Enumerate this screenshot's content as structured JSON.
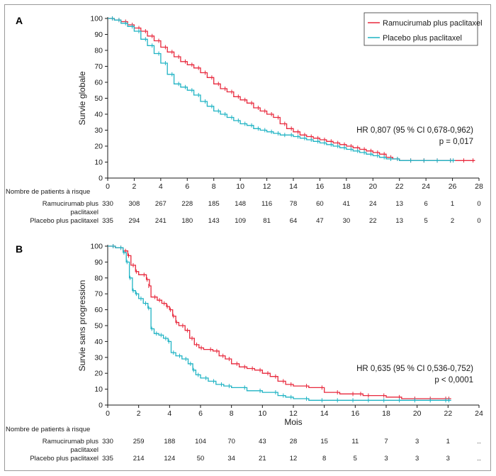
{
  "colors": {
    "ramucirumab": "#e8283c",
    "placebo": "#1fb3c4",
    "axis": "#1a1a1a"
  },
  "chart_data": [
    {
      "type": "line",
      "panel": "A",
      "ylabel": "Survie globale",
      "xlabel": "",
      "xlim": [
        0,
        28
      ],
      "ylim": [
        0,
        100
      ],
      "xticks": [
        0,
        2,
        4,
        6,
        8,
        10,
        12,
        14,
        16,
        18,
        20,
        22,
        24,
        26,
        28
      ],
      "yticks": [
        0,
        10,
        20,
        30,
        40,
        50,
        60,
        70,
        80,
        90,
        100
      ],
      "legend": {
        "placement": "top-right",
        "entries": [
          "Ramucirumab plus paclitaxel",
          "Placebo plus paclitaxel"
        ]
      },
      "annotation": [
        "HR 0,807 (95 % CI 0,678-0,962)",
        "p = 0,017"
      ],
      "series": [
        {
          "name": "Ramucirumab plus paclitaxel",
          "color": "#e8283c",
          "x": [
            0,
            0.5,
            1,
            1.5,
            2,
            2.5,
            3,
            3.5,
            4,
            4.5,
            5,
            5.5,
            6,
            6.5,
            7,
            7.5,
            8,
            8.5,
            9,
            9.5,
            10,
            10.5,
            11,
            11.5,
            12,
            12.5,
            13,
            13.5,
            14,
            14.5,
            15,
            15.5,
            16,
            16.5,
            17,
            17.5,
            18,
            18.5,
            19,
            19.5,
            20,
            20.5,
            21,
            21.5,
            22,
            23,
            24,
            25,
            26,
            27,
            27.7
          ],
          "y": [
            100,
            99,
            98,
            96,
            94,
            92,
            89,
            86,
            82,
            79,
            76,
            73,
            71,
            69,
            66,
            63,
            59,
            56,
            54,
            51,
            49,
            47,
            44,
            42,
            40,
            38,
            34,
            31,
            29,
            27,
            26,
            25,
            24,
            23,
            22,
            21,
            20,
            19,
            18,
            17,
            16,
            15,
            13,
            12,
            11,
            11,
            11,
            11,
            11,
            11,
            11
          ]
        },
        {
          "name": "Placebo plus paclitaxel",
          "color": "#1fb3c4",
          "x": [
            0,
            0.5,
            1,
            1.5,
            2,
            2.5,
            3,
            3.5,
            4,
            4.5,
            5,
            5.5,
            6,
            6.5,
            7,
            7.5,
            8,
            8.5,
            9,
            9.5,
            10,
            10.5,
            11,
            11.5,
            12,
            12.5,
            13,
            13.5,
            14,
            14.5,
            15,
            15.5,
            16,
            16.5,
            17,
            17.5,
            18,
            18.5,
            19,
            19.5,
            20,
            20.5,
            21,
            21.5,
            22,
            23,
            24,
            25,
            26,
            26.2
          ],
          "y": [
            100,
            99,
            97,
            95,
            92,
            87,
            83,
            78,
            72,
            65,
            59,
            57,
            55,
            52,
            48,
            45,
            42,
            40,
            38,
            36,
            34,
            33,
            31,
            30,
            29,
            28,
            27,
            27,
            26,
            25,
            24,
            23,
            22,
            21,
            20,
            19,
            18,
            17,
            16,
            15,
            14,
            13,
            12,
            12,
            11,
            11,
            11,
            11,
            11,
            11
          ]
        }
      ],
      "risk_table": {
        "header": "Nombre de patients à risque",
        "rows": [
          {
            "label_line1": "Ramucirumab plus",
            "label_line2": "paclitaxel",
            "values": [
              "330",
              "308",
              "267",
              "228",
              "185",
              "148",
              "116",
              "78",
              "60",
              "41",
              "24",
              "13",
              "6",
              "1",
              "0"
            ]
          },
          {
            "label_line1": "Placebo plus paclitaxel",
            "label_line2": "",
            "values": [
              "335",
              "294",
              "241",
              "180",
              "143",
              "109",
              "81",
              "64",
              "47",
              "30",
              "22",
              "13",
              "5",
              "2",
              "0"
            ]
          }
        ]
      }
    },
    {
      "type": "line",
      "panel": "B",
      "ylabel": "Survie sans progression",
      "xlabel": "Mois",
      "xlim": [
        0,
        24
      ],
      "ylim": [
        0,
        100
      ],
      "xticks": [
        0,
        2,
        4,
        6,
        8,
        10,
        12,
        14,
        16,
        18,
        20,
        22,
        24
      ],
      "yticks": [
        0,
        10,
        20,
        30,
        40,
        50,
        60,
        70,
        80,
        90,
        100
      ],
      "annotation": [
        "HR 0,635 (95 % CI 0,536-0,752)",
        "p < 0,0001"
      ],
      "series": [
        {
          "name": "Ramucirumab plus paclitaxel",
          "color": "#e8283c",
          "x": [
            0,
            0.5,
            1,
            1.3,
            1.5,
            1.8,
            2,
            2.5,
            2.7,
            2.8,
            3.2,
            3.5,
            3.8,
            4,
            4.2,
            4.4,
            4.6,
            5,
            5.3,
            5.6,
            5.9,
            6.2,
            6.8,
            7.2,
            7.6,
            8,
            8.5,
            9,
            9.5,
            10,
            10.5,
            11,
            11.5,
            12,
            13,
            14,
            15,
            16,
            16.5,
            17,
            18,
            19,
            20,
            21,
            22,
            22.2
          ],
          "y": [
            100,
            99,
            97,
            94,
            88,
            84,
            82,
            79,
            75,
            68,
            66,
            64,
            62,
            60,
            56,
            52,
            50,
            47,
            42,
            38,
            36,
            35,
            34,
            31,
            29,
            26,
            24,
            23,
            22,
            20,
            18,
            15,
            13,
            12,
            11,
            8,
            7,
            7,
            6,
            6,
            5,
            4,
            4,
            4,
            4,
            4
          ]
        },
        {
          "name": "Placebo plus paclitaxel",
          "color": "#1fb3c4",
          "x": [
            0,
            0.5,
            1,
            1.2,
            1.4,
            1.6,
            1.8,
            2,
            2.3,
            2.6,
            2.8,
            3,
            3.3,
            3.6,
            3.9,
            4.1,
            4.4,
            4.8,
            5.2,
            5.5,
            5.7,
            6,
            6.5,
            7,
            7.5,
            8,
            9,
            10,
            11,
            11.5,
            12,
            13,
            14,
            15,
            16,
            17,
            18,
            19,
            20,
            21,
            22,
            22.2
          ],
          "y": [
            100,
            99,
            96,
            90,
            80,
            72,
            70,
            67,
            64,
            61,
            48,
            45,
            44,
            42,
            40,
            33,
            31,
            29,
            26,
            22,
            19,
            17,
            15,
            13,
            12,
            11,
            9,
            8,
            6,
            5,
            4,
            3,
            3,
            3,
            3,
            3,
            3,
            3,
            3,
            3,
            3,
            3
          ]
        }
      ],
      "risk_table": {
        "header": "Nombre de patients à risque",
        "rows": [
          {
            "label_line1": "Ramucirumab plus",
            "label_line2": "paclitaxel",
            "values": [
              "330",
              "259",
              "188",
              "104",
              "70",
              "43",
              "28",
              "15",
              "11",
              "7",
              "3",
              "1",
              ".."
            ]
          },
          {
            "label_line1": "Placebo plus paclitaxel",
            "label_line2": "",
            "values": [
              "335",
              "214",
              "124",
              "50",
              "34",
              "21",
              "12",
              "8",
              "5",
              "3",
              "3",
              "3",
              ".."
            ]
          }
        ]
      }
    }
  ]
}
